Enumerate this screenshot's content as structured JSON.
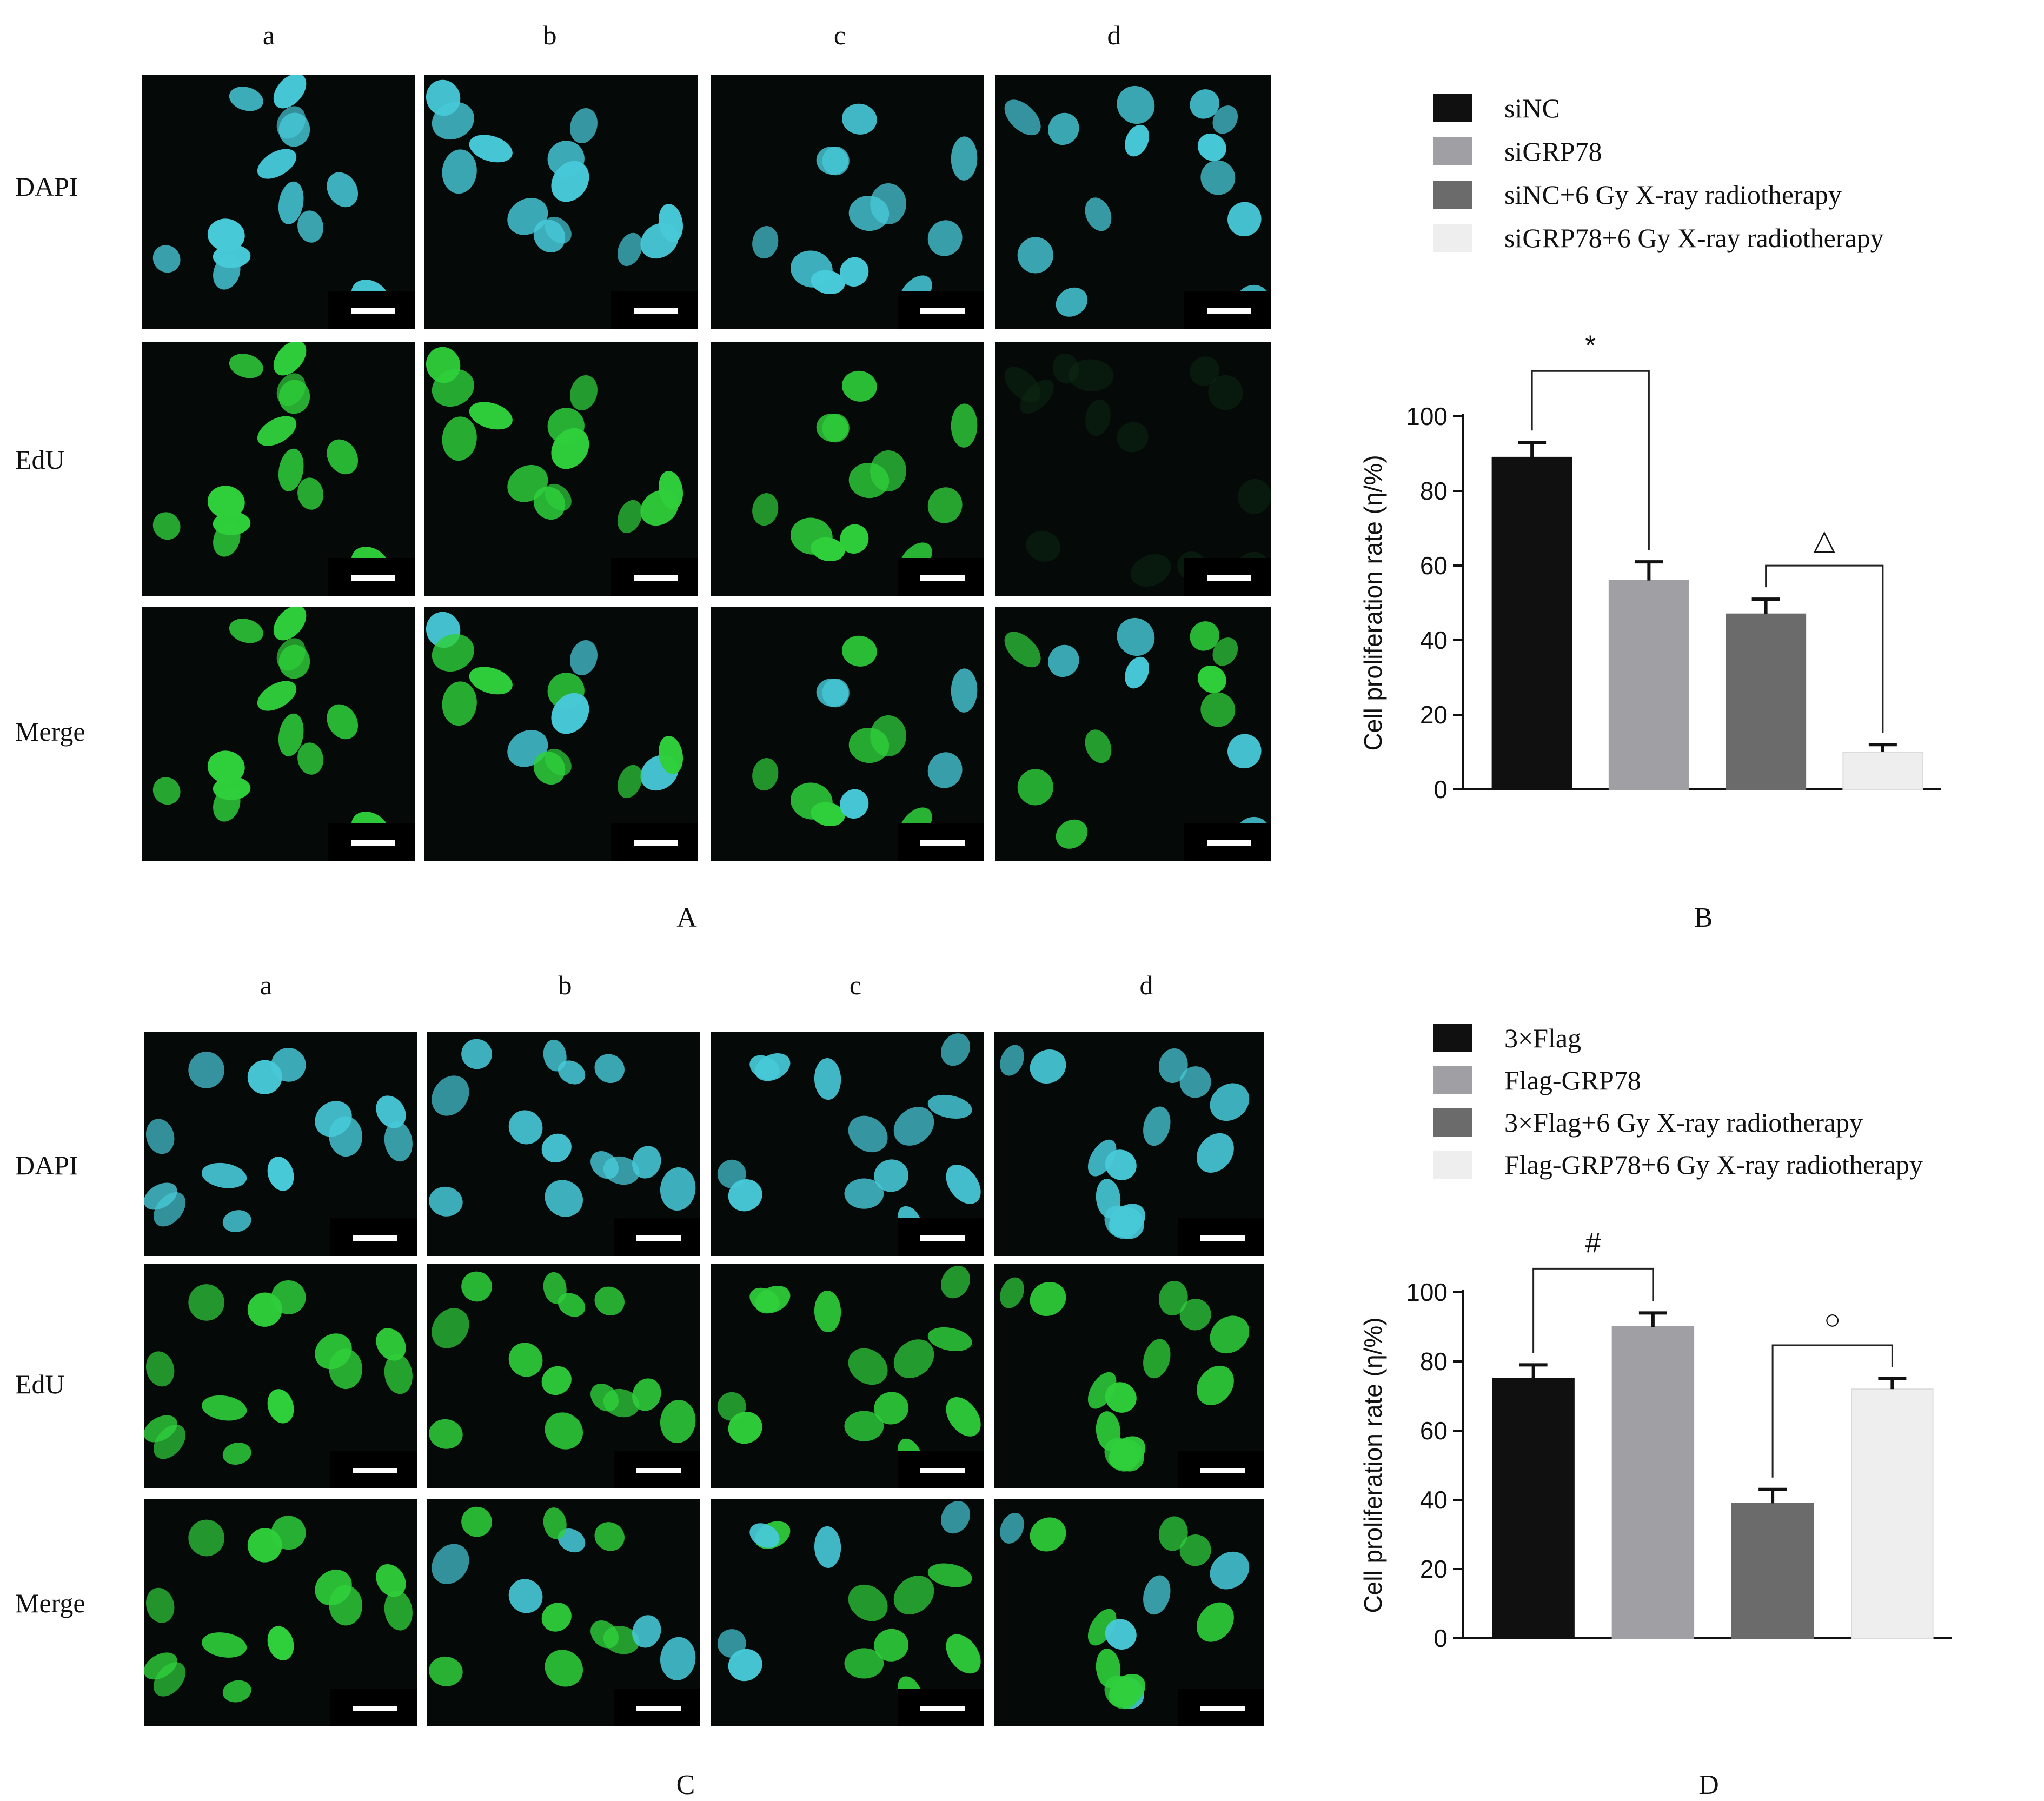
{
  "panel_A": {
    "column_labels": [
      "a",
      "b",
      "c",
      "d"
    ],
    "row_labels": [
      "DAPI",
      "EdU",
      "Merge"
    ],
    "letter": "A"
  },
  "panel_C": {
    "column_labels": [
      "a",
      "b",
      "c",
      "d"
    ],
    "row_labels": [
      "DAPI",
      "EdU",
      "Merge"
    ],
    "letter": "C"
  },
  "panel_B": {
    "letter": "B"
  },
  "panel_D": {
    "letter": "D"
  },
  "colors": {
    "series": [
      "#101010",
      "#a0a0a4",
      "#6b6b6b",
      "#eeeeee"
    ],
    "dapi": "#47c9d8",
    "edu": "#2fcf3b",
    "background": "#050a08"
  },
  "chart_data": [
    {
      "type": "bar",
      "categories": [
        "siNC",
        "siGRP78",
        "siNC+6 Gy X-ray radiotherapy",
        "siGRP78+6 Gy X-ray radiotherapy"
      ],
      "values": [
        89,
        56,
        47,
        10
      ],
      "errors": [
        4,
        5,
        4,
        2
      ],
      "ylabel": "Cell proliferation rate (η/%)",
      "yticks": [
        0,
        20,
        40,
        60,
        80,
        100
      ],
      "ylim": [
        0,
        100
      ],
      "legend": [
        "siNC",
        "siGRP78",
        "siNC+6 Gy X-ray radiotherapy",
        "siGRP78+6 Gy X-ray radiotherapy"
      ],
      "legend_position": "top",
      "annotations": [
        {
          "symbol": "*",
          "between": [
            0,
            1
          ]
        },
        {
          "symbol": "△",
          "between": [
            2,
            3
          ]
        }
      ]
    },
    {
      "type": "bar",
      "categories": [
        "3×Flag",
        "Flag-GRP78",
        "3×Flag+6 Gy X-ray radiotherapy",
        "Flag-GRP78+6 Gy X-ray radiotherapy"
      ],
      "values": [
        75,
        90,
        39,
        72
      ],
      "errors": [
        4,
        4,
        4,
        3
      ],
      "ylabel": "Cell proliferation rate (η/%)",
      "yticks": [
        0,
        20,
        40,
        60,
        80,
        100
      ],
      "ylim": [
        0,
        100
      ],
      "legend": [
        "3×Flag",
        "Flag-GRP78",
        "3×Flag+6 Gy X-ray radiotherapy",
        "Flag-GRP78+6 Gy X-ray radiotherapy"
      ],
      "legend_position": "top",
      "annotations": [
        {
          "symbol": "#",
          "between": [
            0,
            1
          ]
        },
        {
          "symbol": "○",
          "between": [
            2,
            3
          ]
        }
      ]
    }
  ]
}
